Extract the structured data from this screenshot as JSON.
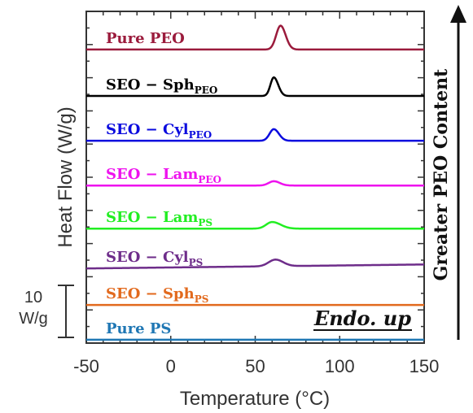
{
  "chart_data": {
    "type": "line",
    "xlabel": "Temperature (°C)",
    "ylabel": "Heat Flow (W/g)",
    "xlim": [
      -50,
      150
    ],
    "x_ticks": [
      -50,
      0,
      50,
      100,
      150
    ],
    "y_ticks_labeled": false,
    "grid": false,
    "stacked_offset": true,
    "scale_bar": {
      "value": 10,
      "unit": "W/g",
      "label_line1": "10",
      "label_line2": "W/g"
    },
    "annotation": "Endo. up",
    "side_annotation": "Greater PEO Content",
    "series": [
      {
        "name_main": "Pure PEO",
        "name_sub": "",
        "color": "#9b1b3c",
        "baseline": 88.5,
        "peak_center": 65,
        "peak_height": 7.2,
        "peak_width_left": 2.6,
        "peak_width_right": 3.0,
        "slope": 0
      },
      {
        "name_main": "SEO − Sph",
        "name_sub": "PEO",
        "color": "#000000",
        "baseline": 74.5,
        "peak_center": 61,
        "peak_height": 5.6,
        "peak_width_left": 2.0,
        "peak_width_right": 2.6,
        "slope": 0
      },
      {
        "name_main": "SEO − Cyl",
        "name_sub": "PEO",
        "color": "#0b0bde",
        "baseline": 61.0,
        "peak_center": 61,
        "peak_height": 3.5,
        "peak_width_left": 2.5,
        "peak_width_right": 3.0,
        "slope": 0
      },
      {
        "name_main": "SEO − Lam",
        "name_sub": "PEO",
        "color": "#ee12ee",
        "baseline": 47.5,
        "peak_center": 61,
        "peak_height": 1.3,
        "peak_width_left": 3.0,
        "peak_width_right": 3.5,
        "slope": 0
      },
      {
        "name_main": "SEO − Lam",
        "name_sub": "PS",
        "color": "#22ee22",
        "baseline": 34.5,
        "peak_center": 60,
        "peak_height": 2.0,
        "peak_width_left": 3.5,
        "peak_width_right": 5.0,
        "slope": 0
      },
      {
        "name_main": "SEO − Cyl",
        "name_sub": "PS",
        "color": "#6e2d8a",
        "baseline": 22.5,
        "peak_center": 62,
        "peak_height": 2.0,
        "peak_width_left": 4.0,
        "peak_width_right": 4.5,
        "slope": 0.006
      },
      {
        "name_main": "SEO − Sph",
        "name_sub": "PS",
        "color": "#e26a1e",
        "baseline": 11.5,
        "peak_center": 60,
        "peak_height": 0,
        "peak_width_left": 3.0,
        "peak_width_right": 3.0,
        "slope": 0
      },
      {
        "name_main": "Pure PS",
        "name_sub": "",
        "color": "#1f77b4",
        "baseline": 1.0,
        "peak_center": 60,
        "peak_height": 0,
        "peak_width_left": 3.0,
        "peak_width_right": 3.0,
        "slope": 0
      }
    ]
  }
}
